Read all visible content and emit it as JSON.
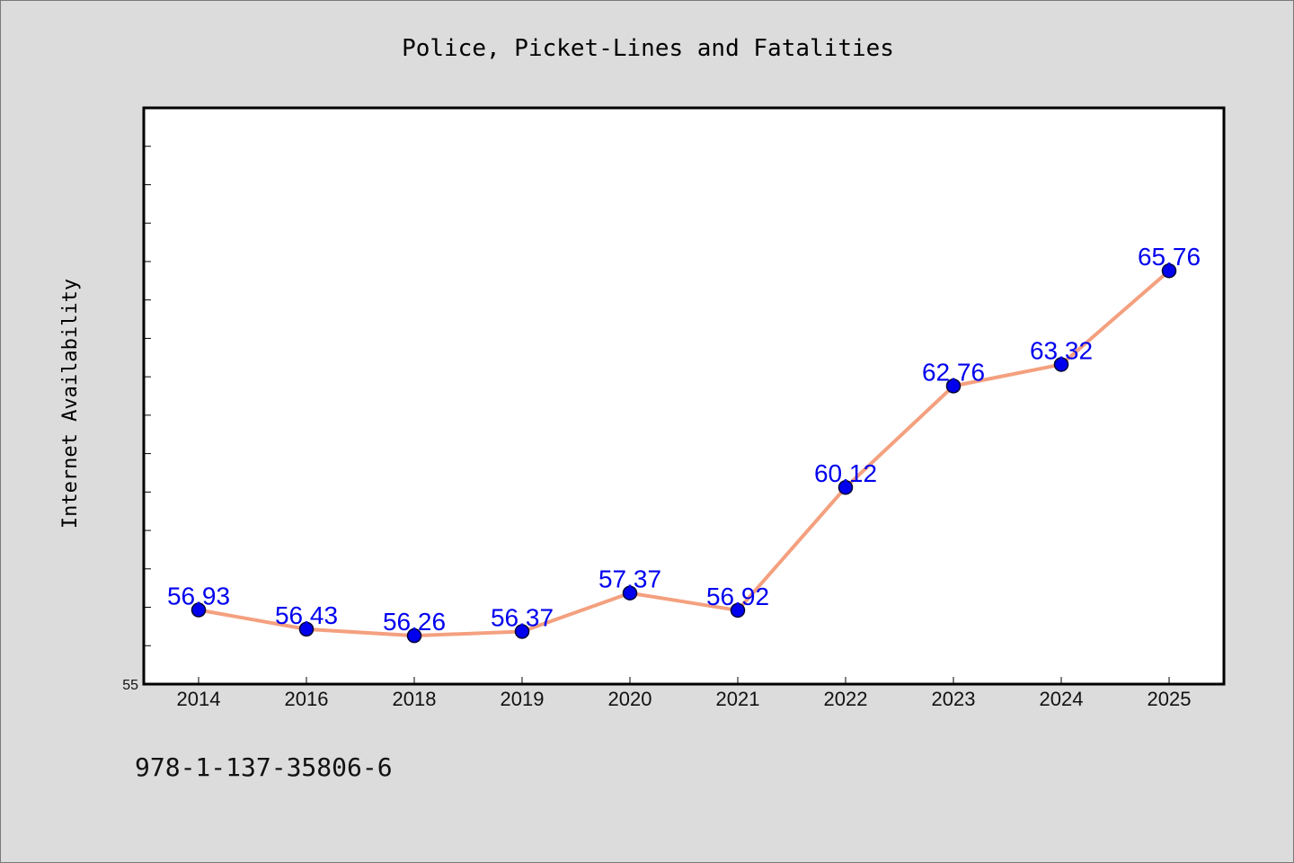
{
  "chart_data": {
    "type": "line",
    "title": "Police, Picket-Lines and Fatalities",
    "ylabel": "Internet Availability",
    "xlabel": "",
    "categories": [
      "2014",
      "2016",
      "2018",
      "2019",
      "2020",
      "2021",
      "2022",
      "2023",
      "2024",
      "2025"
    ],
    "series": [
      {
        "values": [
          56.93,
          56.43,
          56.26,
          56.37,
          57.37,
          56.92,
          60.12,
          62.76,
          63.32,
          65.76
        ],
        "labels": [
          "56.93",
          "56.43",
          "56.26",
          "56.37",
          "57.37",
          "56.92",
          "60.12",
          "62.76",
          "63.32",
          "65.76"
        ]
      }
    ],
    "ylim": [
      55,
      70
    ],
    "y_tick_labels": [
      "55"
    ],
    "y_minor_step": 1,
    "grid": false,
    "colors": {
      "line": "#f4a07f",
      "marker": "#0000ee",
      "data_label": "#0000ee"
    }
  },
  "footer": {
    "isbn": "978-1-137-35806-6"
  }
}
